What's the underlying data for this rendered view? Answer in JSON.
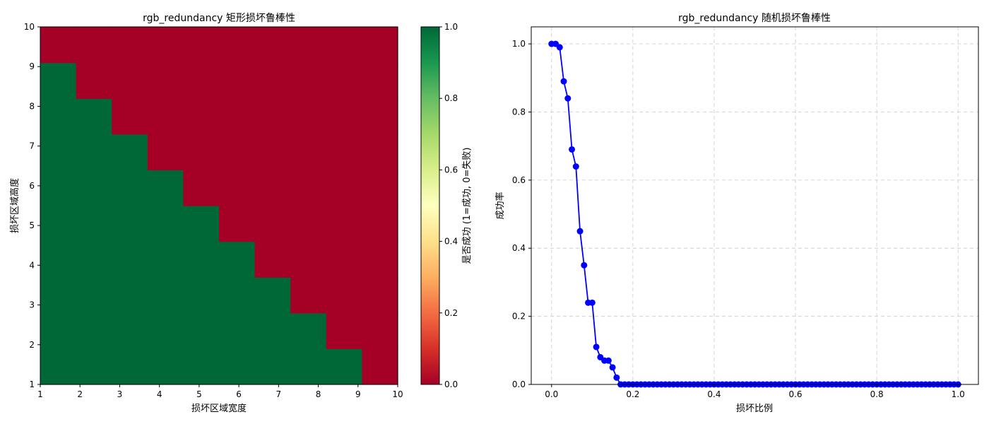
{
  "chart_data": [
    {
      "type": "heatmap",
      "title": "rgb_redundancy 矩形损坏鲁棒性",
      "xlabel": "损坏区域宽度",
      "ylabel": "损坏区域高度",
      "xlim": [
        1,
        10
      ],
      "ylim": [
        1,
        10
      ],
      "x_ticks": [
        1,
        2,
        3,
        4,
        5,
        6,
        7,
        8,
        9,
        10
      ],
      "y_ticks": [
        1,
        2,
        3,
        4,
        5,
        6,
        7,
        8,
        9,
        10
      ],
      "grid_size": 10,
      "note_rows": "rows listed from bottom (height=1) to top (height=10); 1=success, 0=failure",
      "matrix": [
        [
          1,
          1,
          1,
          1,
          1,
          1,
          1,
          1,
          1,
          0
        ],
        [
          1,
          1,
          1,
          1,
          1,
          1,
          1,
          1,
          0,
          0
        ],
        [
          1,
          1,
          1,
          1,
          1,
          1,
          1,
          0,
          0,
          0
        ],
        [
          1,
          1,
          1,
          1,
          1,
          1,
          0,
          0,
          0,
          0
        ],
        [
          1,
          1,
          1,
          1,
          1,
          0,
          0,
          0,
          0,
          0
        ],
        [
          1,
          1,
          1,
          1,
          0,
          0,
          0,
          0,
          0,
          0
        ],
        [
          1,
          1,
          1,
          0,
          0,
          0,
          0,
          0,
          0,
          0
        ],
        [
          1,
          1,
          0,
          0,
          0,
          0,
          0,
          0,
          0,
          0
        ],
        [
          1,
          0,
          0,
          0,
          0,
          0,
          0,
          0,
          0,
          0
        ],
        [
          0,
          0,
          0,
          0,
          0,
          0,
          0,
          0,
          0,
          0
        ]
      ],
      "colormap": "RdYlGn",
      "colors": {
        "success": "#006837",
        "failure": "#a50026"
      },
      "colorbar": {
        "label": "是否成功 (1=成功, 0=失败)",
        "range": [
          0.0,
          1.0
        ],
        "ticks": [
          "0.0",
          "0.2",
          "0.4",
          "0.6",
          "0.8",
          "1.0"
        ],
        "stops": [
          "#a50026",
          "#d73027",
          "#f46d43",
          "#fdae61",
          "#fee08b",
          "#ffffbf",
          "#d9ef8b",
          "#a6d96a",
          "#66bd63",
          "#1a9850",
          "#006837"
        ]
      }
    },
    {
      "type": "line",
      "title": "rgb_redundancy 随机损坏鲁棒性",
      "xlabel": "损坏比例",
      "ylabel": "成功率",
      "xlim": [
        -0.05,
        1.05
      ],
      "ylim": [
        0.0,
        1.05
      ],
      "x_ticks": [
        "0.0",
        "0.2",
        "0.4",
        "0.6",
        "0.8",
        "1.0"
      ],
      "y_ticks": [
        "0.0",
        "0.2",
        "0.4",
        "0.6",
        "0.8",
        "1.0"
      ],
      "grid": true,
      "color": "#0000ff",
      "series": [
        {
          "x": [
            0.0,
            0.01,
            0.02,
            0.03,
            0.04,
            0.05,
            0.06,
            0.07,
            0.08,
            0.09,
            0.1,
            0.11,
            0.12,
            0.13,
            0.14,
            0.15,
            0.16,
            0.17,
            0.18,
            0.19,
            0.2,
            0.21,
            0.22,
            0.23,
            0.24,
            0.25,
            0.26,
            0.27,
            0.28,
            0.29,
            0.3,
            0.31,
            0.32,
            0.33,
            0.34,
            0.35,
            0.36,
            0.37,
            0.38,
            0.39,
            0.4,
            0.41,
            0.42,
            0.43,
            0.44,
            0.45,
            0.46,
            0.47,
            0.48,
            0.49,
            0.5,
            0.51,
            0.52,
            0.53,
            0.54,
            0.55,
            0.56,
            0.57,
            0.58,
            0.59,
            0.6,
            0.61,
            0.62,
            0.63,
            0.64,
            0.65,
            0.66,
            0.67,
            0.68,
            0.69,
            0.7,
            0.71,
            0.72,
            0.73,
            0.74,
            0.75,
            0.76,
            0.77,
            0.78,
            0.79,
            0.8,
            0.81,
            0.82,
            0.83,
            0.84,
            0.85,
            0.86,
            0.87,
            0.88,
            0.89,
            0.9,
            0.91,
            0.92,
            0.93,
            0.94,
            0.95,
            0.96,
            0.97,
            0.98,
            0.99,
            1.0
          ],
          "y": [
            1.0,
            1.0,
            0.99,
            0.89,
            0.84,
            0.69,
            0.64,
            0.45,
            0.35,
            0.24,
            0.24,
            0.11,
            0.08,
            0.07,
            0.07,
            0.05,
            0.02,
            0.0,
            0.0,
            0.0,
            0.0,
            0.0,
            0.0,
            0.0,
            0.0,
            0.0,
            0.0,
            0.0,
            0.0,
            0.0,
            0.0,
            0.0,
            0.0,
            0.0,
            0.0,
            0.0,
            0.0,
            0.0,
            0.0,
            0.0,
            0.0,
            0.0,
            0.0,
            0.0,
            0.0,
            0.0,
            0.0,
            0.0,
            0.0,
            0.0,
            0.0,
            0.0,
            0.0,
            0.0,
            0.0,
            0.0,
            0.0,
            0.0,
            0.0,
            0.0,
            0.0,
            0.0,
            0.0,
            0.0,
            0.0,
            0.0,
            0.0,
            0.0,
            0.0,
            0.0,
            0.0,
            0.0,
            0.0,
            0.0,
            0.0,
            0.0,
            0.0,
            0.0,
            0.0,
            0.0,
            0.0,
            0.0,
            0.0,
            0.0,
            0.0,
            0.0,
            0.0,
            0.0,
            0.0,
            0.0,
            0.0,
            0.0,
            0.0,
            0.0,
            0.0,
            0.0,
            0.0,
            0.0,
            0.0,
            0.0,
            0.0
          ]
        }
      ]
    }
  ]
}
